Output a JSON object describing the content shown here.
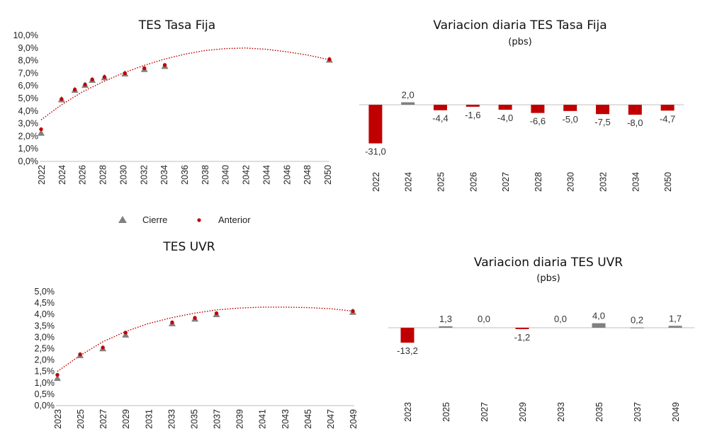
{
  "colors": {
    "neg": "#C00000",
    "pos": "#808080",
    "cierre": "#808080",
    "anterior": "#C00000",
    "trend": "#C00000",
    "axis": "#BFBFBF"
  },
  "legend": {
    "cierre": "Cierre",
    "anterior": "Anterior"
  },
  "chart_data": [
    {
      "type": "scatter",
      "title": "TES Tasa Fija",
      "xlim": [
        2022,
        2050
      ],
      "xticks": [
        2022,
        2024,
        2026,
        2028,
        2030,
        2032,
        2034,
        2036,
        2038,
        2040,
        2042,
        2044,
        2046,
        2048,
        2050
      ],
      "ylim": [
        0,
        10
      ],
      "yticks": [
        "0,0%",
        "1,0%",
        "2,0%",
        "3,0%",
        "4,0%",
        "5,0%",
        "6,0%",
        "7,0%",
        "8,0%",
        "9,0%",
        "10,0%"
      ],
      "series": [
        {
          "name": "Cierre",
          "marker": "triangle",
          "x": [
            2022,
            2024,
            2025.3,
            2026.3,
            2027,
            2028.2,
            2030.2,
            2032.1,
            2034.1,
            2050.2
          ],
          "y": [
            2.25,
            4.9,
            5.65,
            6.05,
            6.45,
            6.65,
            6.95,
            7.3,
            7.55,
            8.05
          ]
        },
        {
          "name": "Anterior",
          "marker": "dot",
          "x": [
            2022,
            2024,
            2025.3,
            2026.3,
            2027,
            2028.2,
            2030.2,
            2032.1,
            2034.1,
            2050.2
          ],
          "y": [
            2.55,
            4.95,
            5.7,
            6.1,
            6.5,
            6.7,
            7.0,
            7.4,
            7.65,
            8.1
          ]
        }
      ],
      "trend": {
        "x": [
          2022,
          2024,
          2026,
          2028,
          2030,
          2032,
          2034,
          2036,
          2038,
          2040,
          2042,
          2044,
          2046,
          2048,
          2050
        ],
        "y": [
          3.3,
          4.5,
          5.5,
          6.3,
          7.0,
          7.6,
          8.1,
          8.5,
          8.8,
          8.95,
          9.0,
          8.9,
          8.7,
          8.45,
          8.1
        ]
      }
    },
    {
      "type": "bar",
      "title": "Variacion diaria TES Tasa Fija",
      "subtitle": "(pbs)",
      "categories": [
        "2022",
        "2024",
        "2025",
        "2026",
        "2027",
        "2028",
        "2030",
        "2032",
        "2034",
        "2050"
      ],
      "values": [
        -31.0,
        2.0,
        -4.4,
        -1.6,
        -4.0,
        -6.6,
        -5.0,
        -7.5,
        -8.0,
        -4.7
      ],
      "labels": [
        "-31,0",
        "2,0",
        "-4,4",
        "-1,6",
        "-4,0",
        "-6,6",
        "-5,0",
        "-7,5",
        "-8,0",
        "-4,7"
      ]
    },
    {
      "type": "scatter",
      "title": "TES UVR",
      "xlim": [
        2023,
        2049
      ],
      "xticks": [
        2023,
        2025,
        2027,
        2029,
        2031,
        2033,
        2035,
        2037,
        2039,
        2041,
        2043,
        2045,
        2047,
        2049
      ],
      "ylim": [
        0,
        5
      ],
      "yticks": [
        "0,0%",
        "0,5%",
        "1,0%",
        "1,5%",
        "2,0%",
        "2,5%",
        "3,0%",
        "3,5%",
        "4,0%",
        "4,5%",
        "5,0%"
      ],
      "series": [
        {
          "name": "Cierre",
          "marker": "triangle",
          "x": [
            2023,
            2025,
            2027,
            2029,
            2033.1,
            2035.1,
            2037,
            2049
          ],
          "y": [
            1.2,
            2.2,
            2.5,
            3.1,
            3.6,
            3.8,
            4.0,
            4.1
          ]
        },
        {
          "name": "Anterior",
          "marker": "dot",
          "x": [
            2023,
            2025,
            2027,
            2029,
            2033.1,
            2035.1,
            2037,
            2049
          ],
          "y": [
            1.35,
            2.25,
            2.55,
            3.2,
            3.65,
            3.85,
            4.05,
            4.15
          ]
        }
      ],
      "trend": {
        "x": [
          2023,
          2025,
          2027,
          2029,
          2031,
          2033,
          2035,
          2037,
          2039,
          2041,
          2043,
          2045,
          2047,
          2049
        ],
        "y": [
          1.5,
          2.2,
          2.8,
          3.25,
          3.6,
          3.85,
          4.05,
          4.2,
          4.28,
          4.32,
          4.32,
          4.3,
          4.25,
          4.15
        ]
      }
    },
    {
      "type": "bar",
      "title": "Variacion diaria TES UVR",
      "subtitle": "(pbs)",
      "categories": [
        "2023",
        "2025",
        "2027",
        "2029",
        "2033",
        "2035",
        "2037",
        "2049"
      ],
      "values": [
        -13.2,
        1.3,
        0.0,
        -1.2,
        0.0,
        4.0,
        0.2,
        1.7
      ],
      "labels": [
        "-13,2",
        "1,3",
        "0,0",
        "-1,2",
        "0,0",
        "4,0",
        "0,2",
        "1,7"
      ]
    }
  ]
}
